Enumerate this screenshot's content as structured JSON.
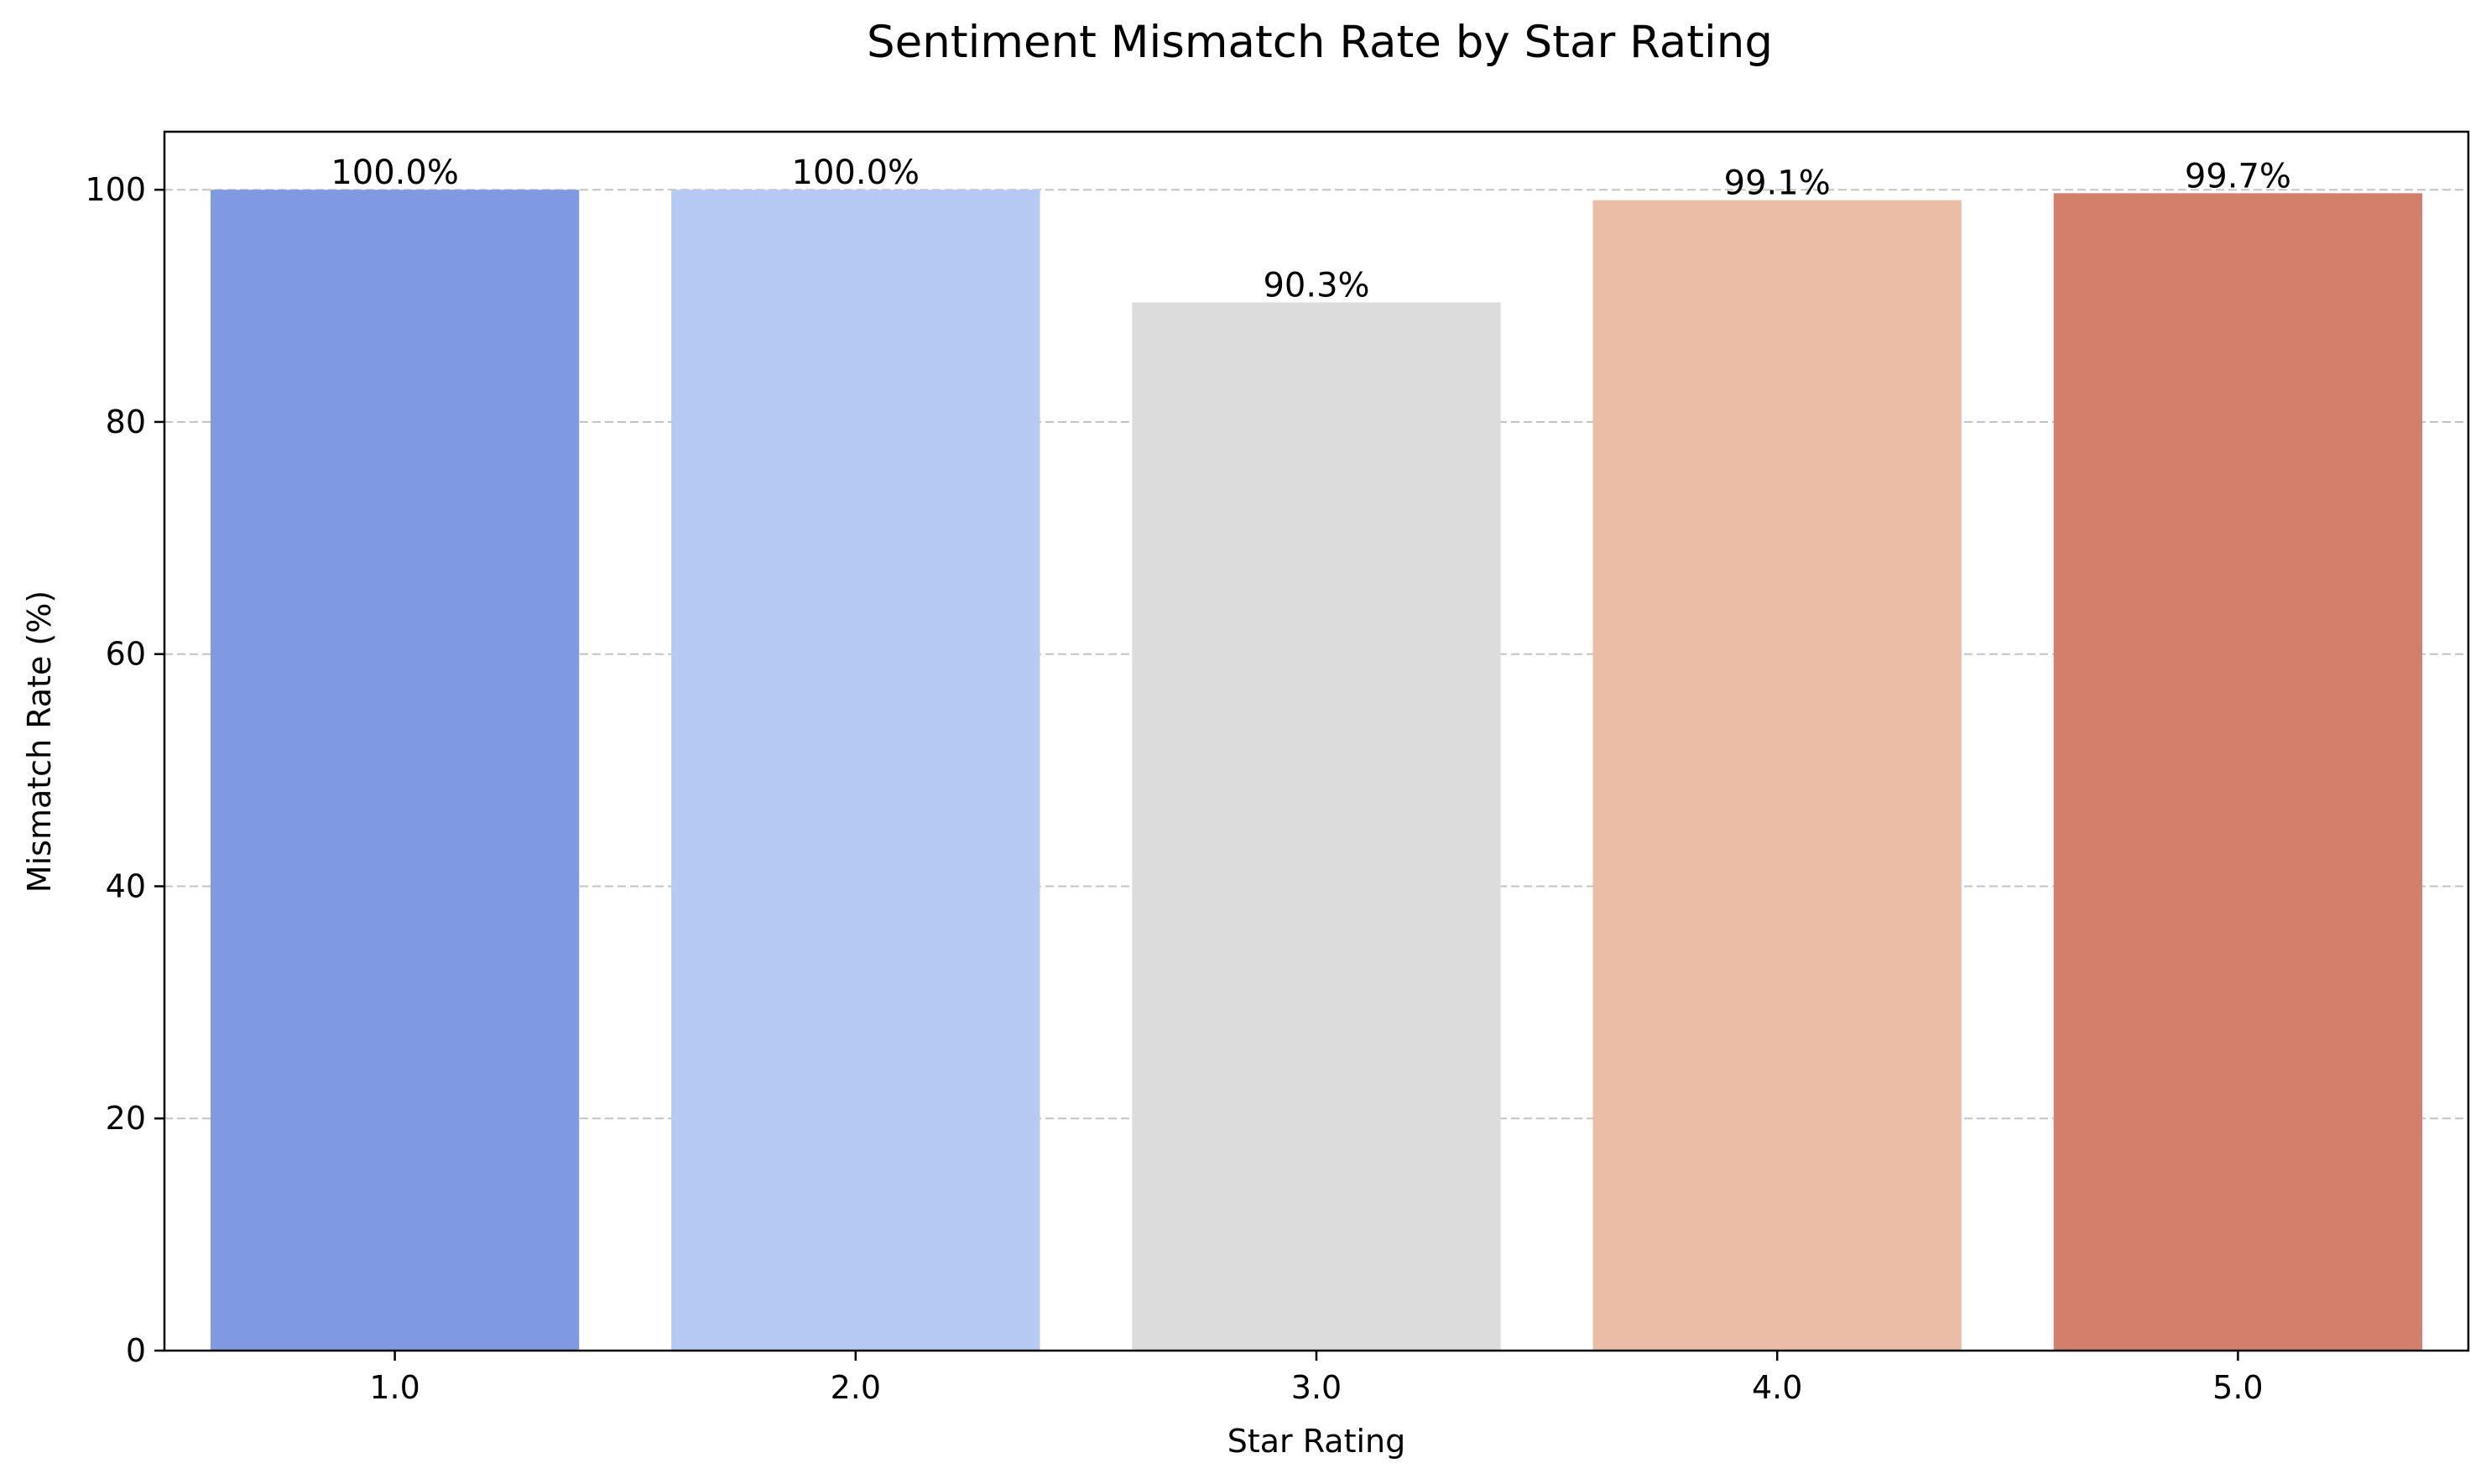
{
  "chart_data": {
    "type": "bar",
    "title": "Sentiment Mismatch Rate by Star Rating",
    "xlabel": "Star Rating",
    "ylabel": "Mismatch Rate (%)",
    "categories": [
      "1.0",
      "2.0",
      "3.0",
      "4.0",
      "5.0"
    ],
    "values": [
      100.0,
      100.0,
      90.3,
      99.1,
      99.7
    ],
    "value_labels": [
      "100.0%",
      "100.0%",
      "90.3%",
      "99.1%",
      "99.7%"
    ],
    "colors": [
      "#7f9ae0",
      "#b5c9f3",
      "#dcdcdc",
      "#ebbca6",
      "#d47f6b"
    ],
    "ylim": [
      0,
      105
    ],
    "yticks": [
      "0",
      "20",
      "40",
      "60",
      "80",
      "100"
    ],
    "grid": "y-dashed",
    "legend": "none"
  }
}
